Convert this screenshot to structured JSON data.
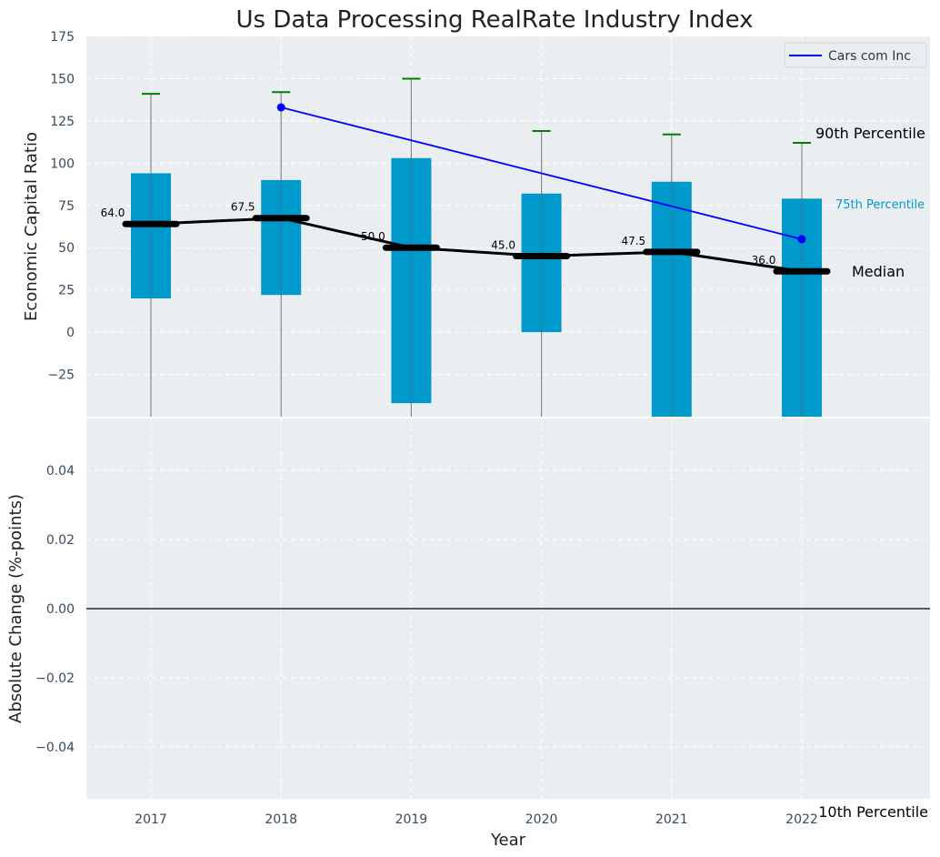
{
  "chart_data": {
    "type": "bar",
    "title": "Us Data Processing RealRate Industry Index",
    "xlabel": "Year",
    "categories": [
      "2017",
      "2018",
      "2019",
      "2020",
      "2021",
      "2022"
    ],
    "top_panel": {
      "ylabel": "Economic Capital Ratio",
      "ylim": [
        -50,
        175
      ],
      "yticks": [
        -25,
        0,
        25,
        50,
        75,
        100,
        125,
        150,
        175
      ],
      "p25": [
        20,
        22,
        -42,
        0,
        -50,
        -50
      ],
      "p75": [
        94,
        90,
        103,
        82,
        89,
        79
      ],
      "p90": [
        141,
        142,
        150,
        119,
        117,
        112
      ],
      "p10": [
        -50,
        -50,
        -50,
        -50,
        -50,
        -50
      ],
      "median": [
        64.0,
        67.5,
        50.0,
        45.0,
        47.5,
        36.0
      ],
      "median_labels": [
        "64.0",
        "67.5",
        "50.0",
        "45.0",
        "47.5",
        "36.0"
      ],
      "company_series": {
        "name": "Cars com Inc",
        "x": [
          "2018",
          "2022"
        ],
        "values": [
          133,
          55
        ]
      },
      "annotations": {
        "p90": "90th Percentile",
        "p75": "75th Percentile",
        "median": "Median",
        "p10": "10th Percentile"
      },
      "grid": true,
      "legend_position": "top-right"
    },
    "bottom_panel": {
      "ylabel": "Absolute Change (%-points)",
      "ylim": [
        -0.055,
        0.055
      ],
      "yticks": [
        -0.04,
        -0.02,
        0.0,
        0.02,
        0.04
      ],
      "ytick_labels": [
        "−0.04",
        "−0.02",
        "0.00",
        "0.02",
        "0.04"
      ],
      "zero_line": true,
      "grid": true
    },
    "ytick_labels_top": [
      "−25",
      "0",
      "25",
      "50",
      "75",
      "100",
      "125",
      "150",
      "175"
    ],
    "colors": {
      "bar": "#0099cc",
      "median": "#000000",
      "p90_cap": "#008000",
      "company": "#0000ff",
      "whisker": "#888888",
      "panel_bg": "#eaeef0",
      "grid": "#ffffff",
      "p75_label": "#0099cc"
    }
  }
}
